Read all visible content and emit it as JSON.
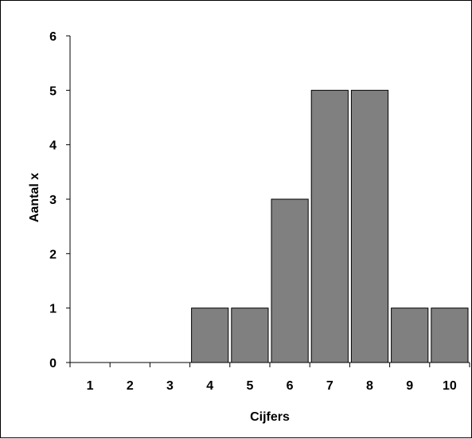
{
  "chart_data": {
    "type": "bar",
    "title": "",
    "xlabel": "Cijfers",
    "ylabel": "Aantal x",
    "categories": [
      "1",
      "2",
      "3",
      "4",
      "5",
      "6",
      "7",
      "8",
      "9",
      "10"
    ],
    "values": [
      0,
      0,
      0,
      1,
      1,
      3,
      5,
      5,
      1,
      1
    ],
    "ylim": [
      0,
      6
    ],
    "yticks": [
      "0",
      "1",
      "2",
      "3",
      "4",
      "5",
      "6"
    ],
    "grid": false,
    "legend": "none",
    "colors": {
      "bar_fill": "#808080",
      "bar_stroke": "#000000",
      "axis": "#000000",
      "background": "#ffffff"
    }
  }
}
